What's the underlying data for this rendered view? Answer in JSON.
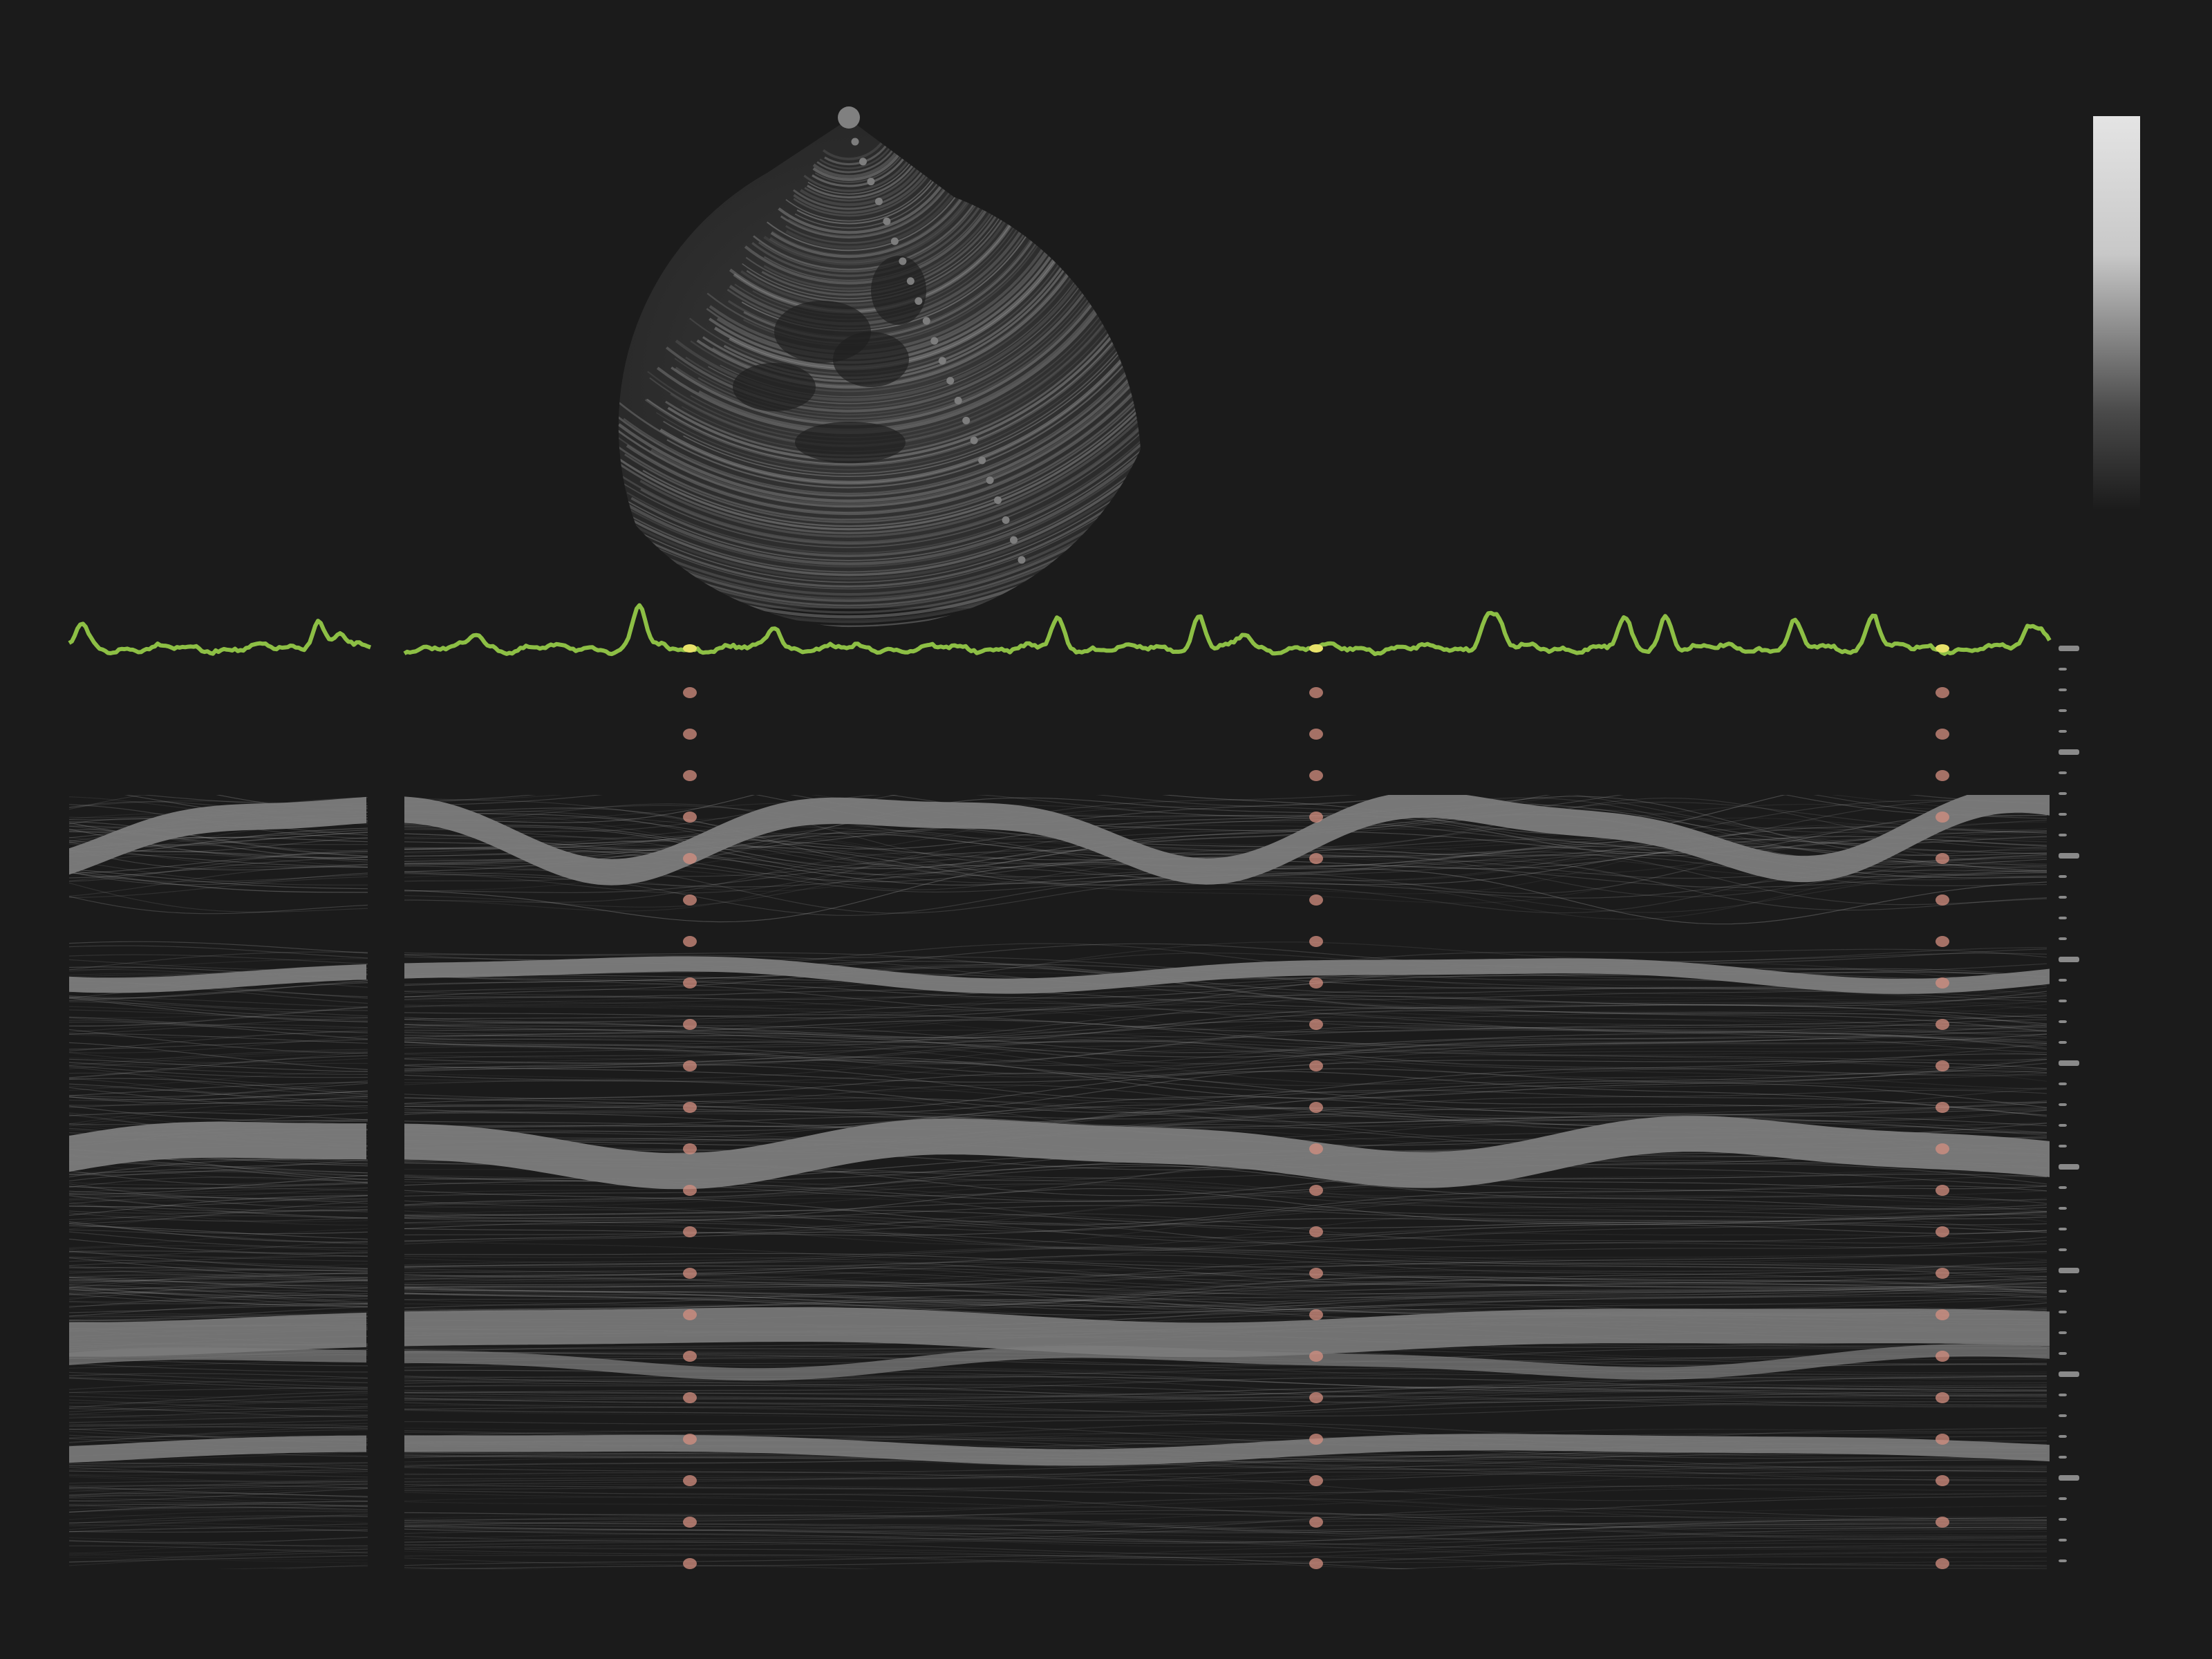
{
  "colors": {
    "background": "#1b1b1b",
    "ecg_trace": "#8dbf45",
    "ecg_marker": "#e8e26a",
    "scanline": "#7d7d7d",
    "probe": "#808080",
    "tissue": "#7c7c7c",
    "mmode_strand": "#a8a8a8",
    "time_marker": "#d48f80",
    "scale_bar_top": "#e4e4e4",
    "scale_bar_bottom": "#1b1b1b"
  },
  "viewer": {
    "sector_view": {
      "icon": "ultrasound-sector-icon"
    },
    "scanline": {
      "icon": "scanline-dots-icon"
    },
    "gray_scale_bar": {
      "icon": "grayscale-gradient-icon"
    },
    "ecg": {
      "icon": "ecg-waveform-icon",
      "r_wave_markers": 3
    },
    "mmode": {
      "icon": "mmode-strip-icon"
    },
    "time_markers": {
      "count": 3
    },
    "depth_scale": {
      "icon": "depth-tick-icon"
    }
  }
}
